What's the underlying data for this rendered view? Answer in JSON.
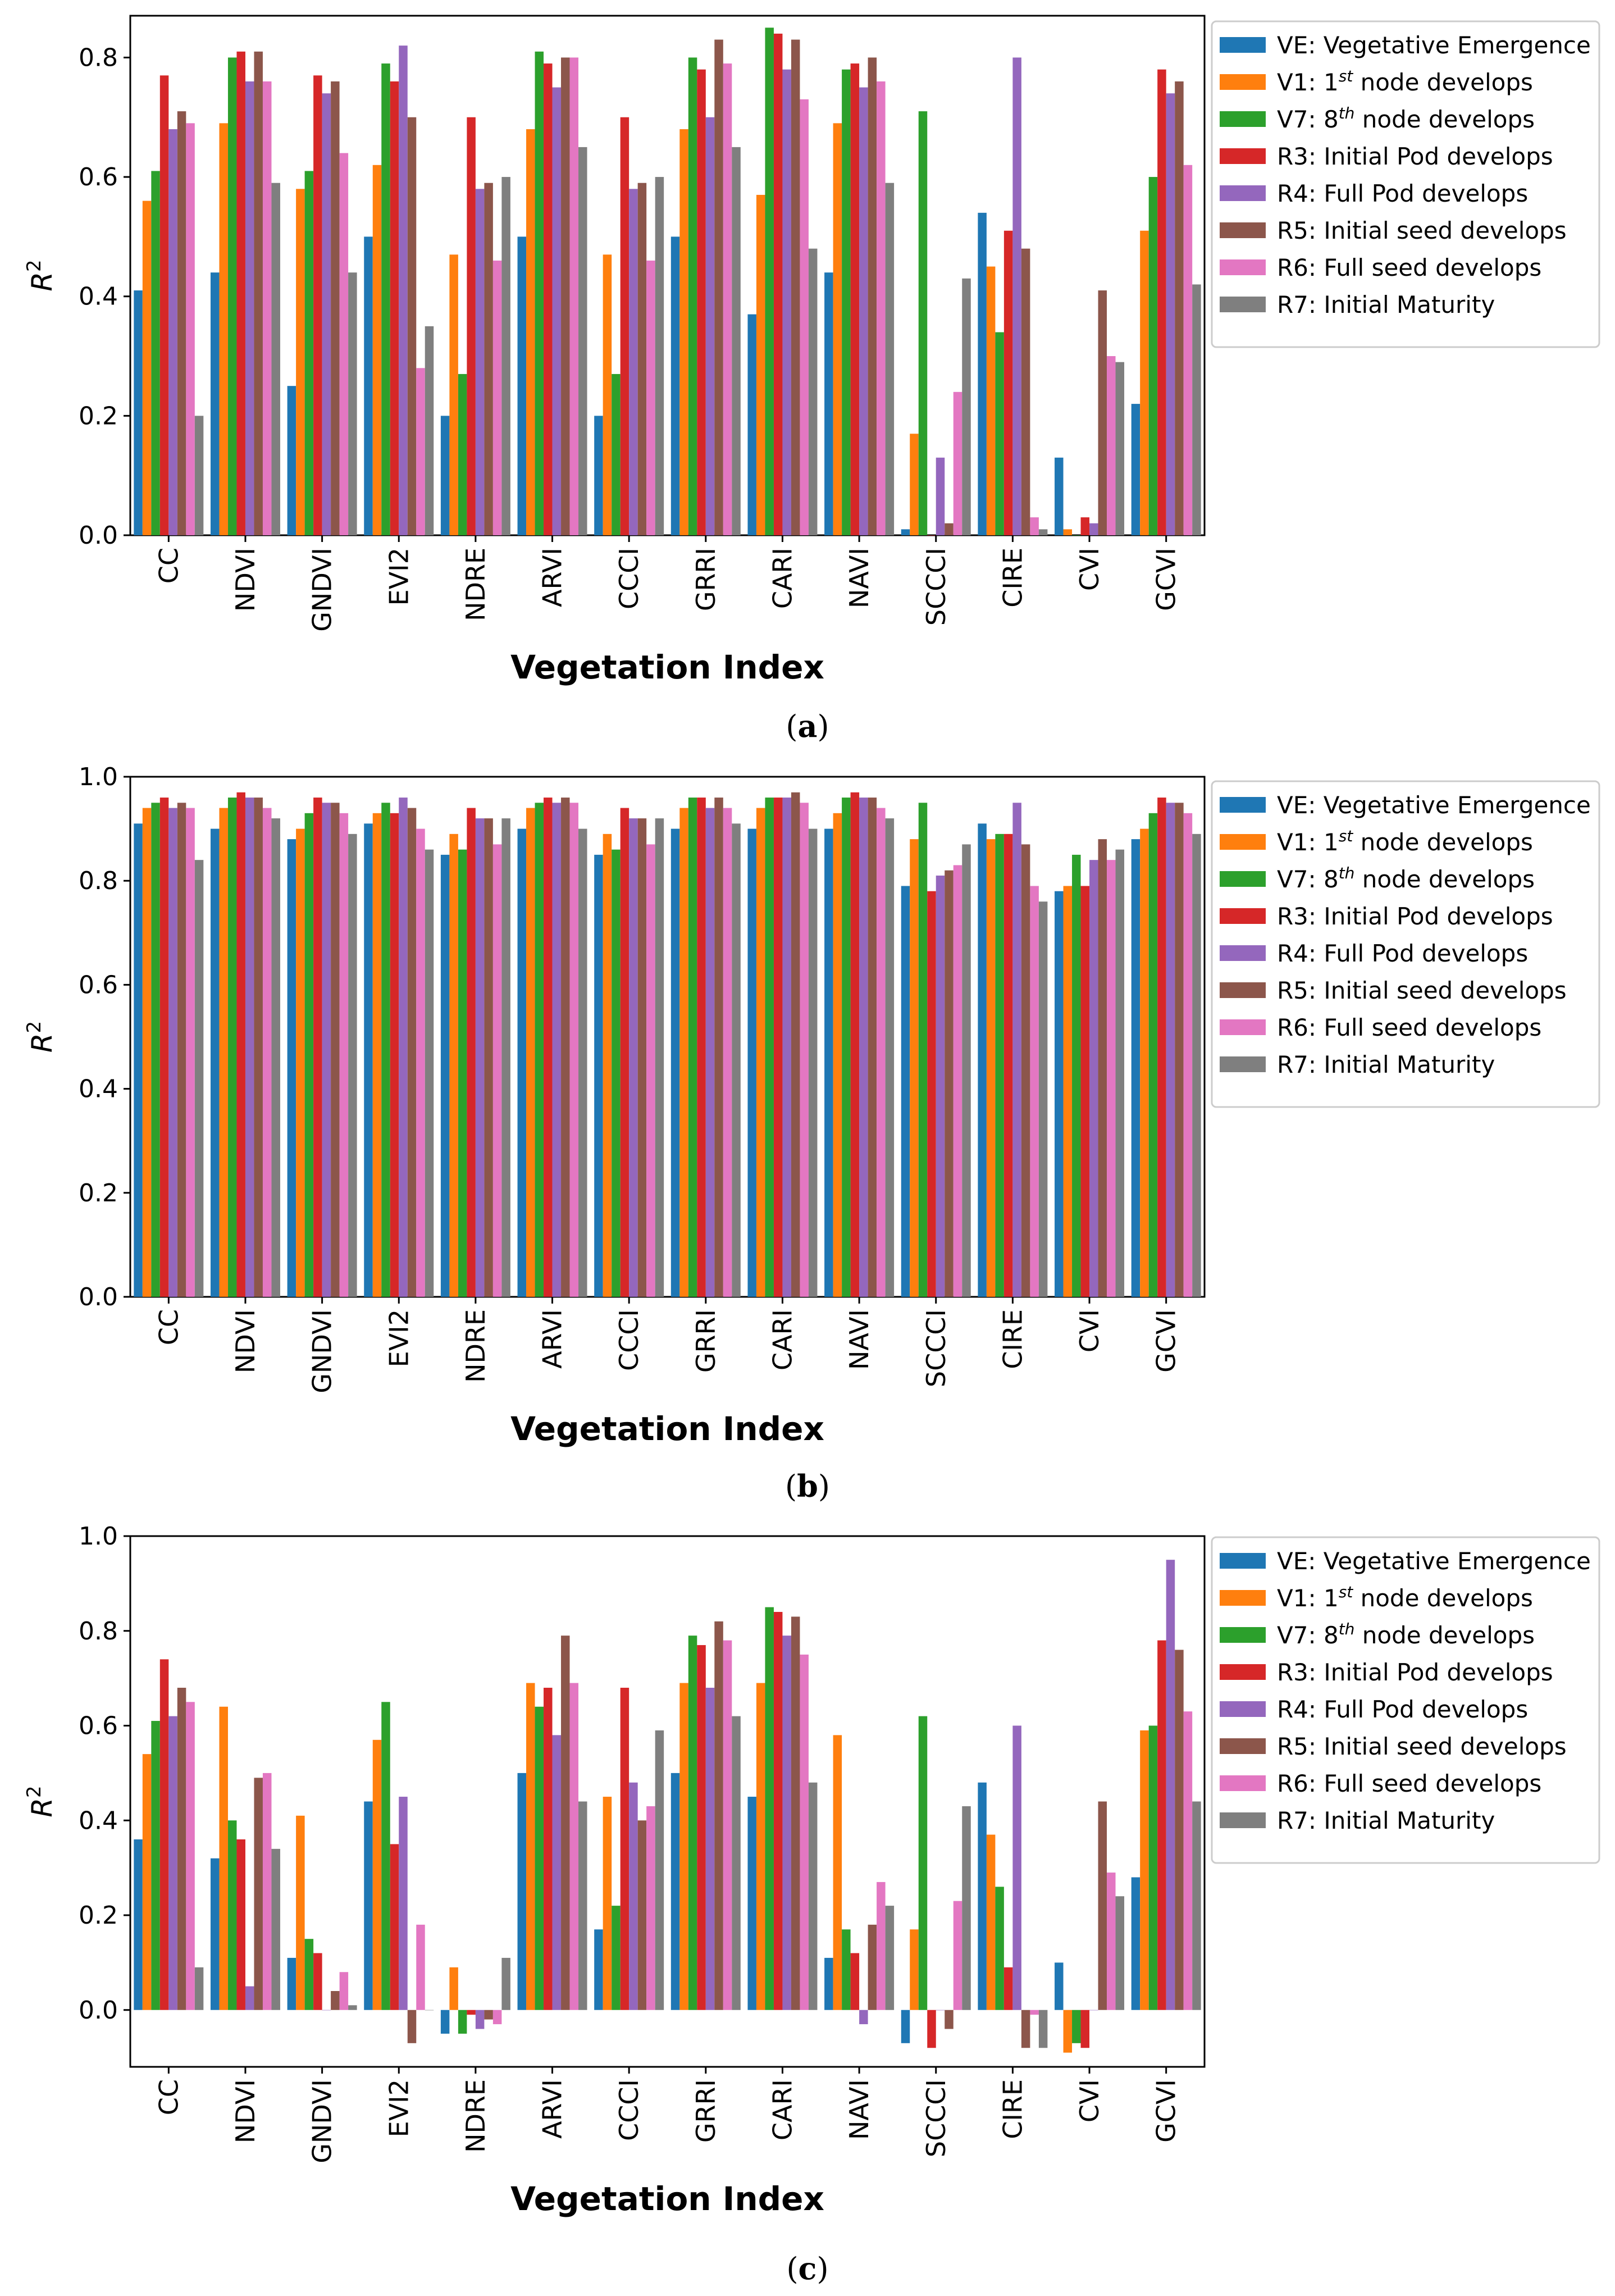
{
  "figure": {
    "xlabel": "Vegetation Index",
    "ylabel_base": "R",
    "ylabel_sup": "2",
    "categories": [
      "CC",
      "NDVI",
      "GNDVI",
      "EVI2",
      "NDRE",
      "ARVI",
      "CCCI",
      "GRRI",
      "CARI",
      "NAVI",
      "SCCCI",
      "CIRE",
      "CVI",
      "GCVI"
    ],
    "series": [
      {
        "name": "VE",
        "color": "#1f77b4",
        "label": "VE: Vegetative Emergence"
      },
      {
        "name": "V1",
        "color": "#ff7f0e",
        "label": "V1: 1st node develops",
        "label_pre": "V1: 1",
        "label_sup": "st",
        "label_post": " node develops"
      },
      {
        "name": "V7",
        "color": "#2ca02c",
        "label": "V7: 8th node develops",
        "label_pre": "V7: 8",
        "label_sup": "th",
        "label_post": " node develops"
      },
      {
        "name": "R3",
        "color": "#d62728",
        "label": "R3: Initial Pod develops"
      },
      {
        "name": "R4",
        "color": "#9467bd",
        "label": "R4: Full Pod develops"
      },
      {
        "name": "R5",
        "color": "#8c564b",
        "label": "R5: Initial seed develops"
      },
      {
        "name": "R6",
        "color": "#e377c2",
        "label": "R6: Full seed develops"
      },
      {
        "name": "R7",
        "color": "#7f7f7f",
        "label": "R7: Initial Maturity"
      }
    ]
  },
  "chart_data": [
    {
      "type": "bar",
      "panel_label": "a",
      "ylim": [
        0,
        0.87
      ],
      "yticks": [
        "0.0",
        "0.2",
        "0.4",
        "0.6",
        "0.8"
      ],
      "tick_values": [
        0,
        0.2,
        0.4,
        0.6,
        0.8
      ],
      "series_values": [
        [
          0.41,
          0.44,
          0.25,
          0.5,
          0.2,
          0.5,
          0.2,
          0.5,
          0.37,
          0.44,
          0.01,
          0.54,
          0.13,
          0.22
        ],
        [
          0.56,
          0.69,
          0.58,
          0.62,
          0.47,
          0.68,
          0.47,
          0.68,
          0.57,
          0.69,
          0.17,
          0.45,
          0.01,
          0.51
        ],
        [
          0.61,
          0.8,
          0.61,
          0.79,
          0.27,
          0.81,
          0.27,
          0.8,
          0.85,
          0.78,
          0.71,
          0.34,
          0.0,
          0.6
        ],
        [
          0.77,
          0.81,
          0.77,
          0.76,
          0.7,
          0.79,
          0.7,
          0.78,
          0.84,
          0.79,
          0.0,
          0.51,
          0.03,
          0.78
        ],
        [
          0.68,
          0.76,
          0.74,
          0.82,
          0.58,
          0.75,
          0.58,
          0.7,
          0.78,
          0.75,
          0.13,
          0.8,
          0.02,
          0.74
        ],
        [
          0.71,
          0.81,
          0.76,
          0.7,
          0.59,
          0.8,
          0.59,
          0.83,
          0.83,
          0.8,
          0.02,
          0.48,
          0.41,
          0.76
        ],
        [
          0.69,
          0.76,
          0.64,
          0.28,
          0.46,
          0.8,
          0.46,
          0.79,
          0.73,
          0.76,
          0.24,
          0.03,
          0.3,
          0.62
        ],
        [
          0.2,
          0.59,
          0.44,
          0.35,
          0.6,
          0.65,
          0.6,
          0.65,
          0.48,
          0.59,
          0.43,
          0.01,
          0.29,
          0.42
        ]
      ]
    },
    {
      "type": "bar",
      "panel_label": "b",
      "ylim": [
        0,
        1.0
      ],
      "yticks": [
        "0.0",
        "0.2",
        "0.4",
        "0.6",
        "0.8",
        "1.0"
      ],
      "tick_values": [
        0,
        0.2,
        0.4,
        0.6,
        0.8,
        1.0
      ],
      "series_values": [
        [
          0.91,
          0.9,
          0.88,
          0.91,
          0.85,
          0.9,
          0.85,
          0.9,
          0.9,
          0.9,
          0.79,
          0.91,
          0.78,
          0.88
        ],
        [
          0.94,
          0.94,
          0.9,
          0.93,
          0.89,
          0.94,
          0.89,
          0.94,
          0.94,
          0.93,
          0.88,
          0.88,
          0.79,
          0.9
        ],
        [
          0.95,
          0.96,
          0.93,
          0.95,
          0.86,
          0.95,
          0.86,
          0.96,
          0.96,
          0.96,
          0.95,
          0.89,
          0.85,
          0.93
        ],
        [
          0.96,
          0.97,
          0.96,
          0.93,
          0.94,
          0.96,
          0.94,
          0.96,
          0.96,
          0.97,
          0.78,
          0.89,
          0.79,
          0.96
        ],
        [
          0.94,
          0.96,
          0.95,
          0.96,
          0.92,
          0.95,
          0.92,
          0.94,
          0.96,
          0.96,
          0.81,
          0.95,
          0.84,
          0.95
        ],
        [
          0.95,
          0.96,
          0.95,
          0.94,
          0.92,
          0.96,
          0.92,
          0.96,
          0.97,
          0.96,
          0.82,
          0.87,
          0.88,
          0.95
        ],
        [
          0.94,
          0.94,
          0.93,
          0.9,
          0.87,
          0.95,
          0.87,
          0.94,
          0.95,
          0.94,
          0.83,
          0.79,
          0.84,
          0.93
        ],
        [
          0.84,
          0.92,
          0.89,
          0.86,
          0.92,
          0.9,
          0.92,
          0.91,
          0.9,
          0.92,
          0.87,
          0.76,
          0.86,
          0.89
        ]
      ]
    },
    {
      "type": "bar",
      "panel_label": "c",
      "ylim": [
        -0.12,
        1.0
      ],
      "yticks": [
        "0.0",
        "0.2",
        "0.4",
        "0.6",
        "0.8",
        "1.0"
      ],
      "tick_values": [
        0,
        0.2,
        0.4,
        0.6,
        0.8,
        1.0
      ],
      "series_values": [
        [
          0.36,
          0.32,
          0.11,
          0.44,
          -0.05,
          0.5,
          0.17,
          0.5,
          0.45,
          0.11,
          -0.07,
          0.48,
          0.1,
          0.28
        ],
        [
          0.54,
          0.64,
          0.41,
          0.57,
          0.09,
          0.69,
          0.45,
          0.69,
          0.69,
          0.58,
          0.17,
          0.37,
          -0.09,
          0.59
        ],
        [
          0.61,
          0.4,
          0.15,
          0.65,
          -0.05,
          0.64,
          0.22,
          0.79,
          0.85,
          0.17,
          0.62,
          0.26,
          -0.07,
          0.6
        ],
        [
          0.74,
          0.36,
          0.12,
          0.35,
          -0.01,
          0.68,
          0.68,
          0.77,
          0.84,
          0.12,
          -0.08,
          0.09,
          -0.08,
          0.78
        ],
        [
          0.62,
          0.05,
          0.0,
          0.45,
          -0.04,
          0.58,
          0.48,
          0.68,
          0.79,
          -0.03,
          0.0,
          0.6,
          0.0,
          0.95
        ],
        [
          0.68,
          0.49,
          0.04,
          -0.07,
          -0.02,
          0.79,
          0.4,
          0.82,
          0.83,
          0.18,
          -0.04,
          -0.08,
          0.44,
          0.76
        ],
        [
          0.65,
          0.5,
          0.08,
          0.18,
          -0.03,
          0.69,
          0.43,
          0.78,
          0.75,
          0.27,
          0.23,
          -0.01,
          0.29,
          0.63
        ],
        [
          0.09,
          0.34,
          0.01,
          0.0,
          0.11,
          0.44,
          0.59,
          0.62,
          0.48,
          0.22,
          0.43,
          -0.08,
          0.24,
          0.44
        ]
      ]
    }
  ]
}
